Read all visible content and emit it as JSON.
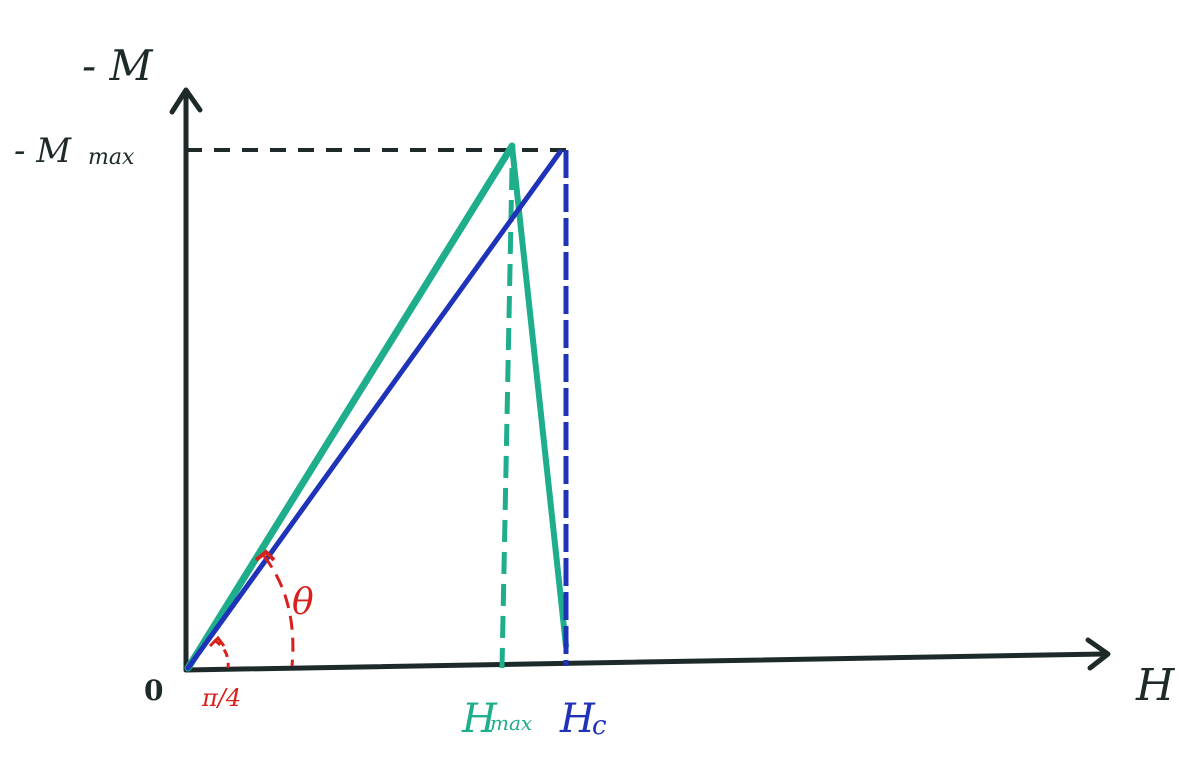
{
  "diagram": {
    "labels": {
      "y_axis": "- M",
      "x_axis": "H",
      "origin": "0",
      "m_max": "- M",
      "m_max_sub": "max",
      "h_max": "H",
      "h_max_sub": "max",
      "h_c": "H",
      "h_c_sub": "c",
      "theta": "θ",
      "small_angle": "π/4"
    },
    "colors": {
      "axis": "#1e2a2a",
      "green_curve": "#1fae8c",
      "blue_curve": "#1f33b8",
      "angle_marks": "#d8201c",
      "dashed_guide": "#1e2a2a"
    }
  }
}
